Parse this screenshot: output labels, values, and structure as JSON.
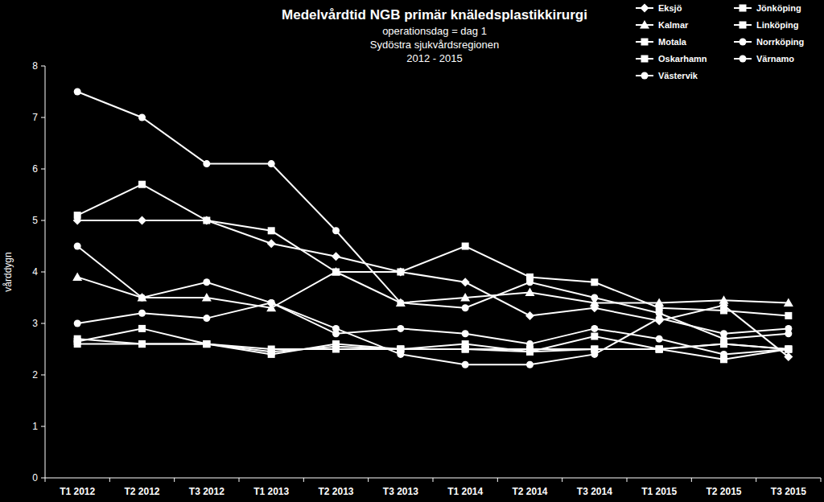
{
  "chart_data": {
    "type": "line",
    "title": "Medelvårdtid NGB primär knäledsplastikkirurgi",
    "subtitle": [
      "operationsdag = dag 1",
      "Sydöstra sjukvårdsregionen",
      "2012 - 2015"
    ],
    "y_label": "vårddygn",
    "categories": [
      "T1 2012",
      "T2 2012",
      "T3 2012",
      "T1 2013",
      "T2 2013",
      "T3 2013",
      "T1 2014",
      "T2 2014",
      "T3 2014",
      "T1 2015",
      "T2 2015",
      "T3 2015"
    ],
    "ylim": [
      0,
      8
    ],
    "yticks": [
      0,
      1,
      2,
      3,
      4,
      5,
      6,
      7,
      8
    ],
    "grid": false,
    "legend": "top-right",
    "series": [
      {
        "name": "Eksjö",
        "color": "#ffffff",
        "marker": "diamond",
        "values": [
          5.0,
          5.0,
          5.0,
          4.55,
          4.3,
          4.0,
          3.8,
          3.15,
          3.3,
          3.05,
          3.35,
          2.35
        ]
      },
      {
        "name": "Jönköping",
        "color": "#ffffff",
        "marker": "square",
        "values": [
          2.6,
          2.6,
          2.6,
          2.45,
          2.55,
          2.5,
          2.5,
          2.5,
          2.5,
          2.5,
          2.6,
          2.5
        ]
      },
      {
        "name": "Kalmar",
        "color": "#ffffff",
        "marker": "triangle",
        "values": [
          3.9,
          3.5,
          3.5,
          3.3,
          4.0,
          3.4,
          3.5,
          3.6,
          3.4,
          3.4,
          3.45,
          3.4
        ]
      },
      {
        "name": "Linköping",
        "color": "#ffffff",
        "marker": "square",
        "values": [
          5.1,
          5.7,
          5.0,
          4.8,
          4.0,
          4.0,
          4.5,
          3.9,
          3.8,
          3.3,
          3.25,
          3.15
        ]
      },
      {
        "name": "Motala",
        "color": "#ffffff",
        "marker": "square",
        "values": [
          2.7,
          2.6,
          2.6,
          2.5,
          2.5,
          2.5,
          2.5,
          2.45,
          2.5,
          2.5,
          2.6,
          2.5
        ]
      },
      {
        "name": "Norrköping",
        "color": "#ffffff",
        "marker": "circle",
        "values": [
          4.5,
          3.5,
          3.8,
          3.4,
          2.9,
          2.4,
          2.2,
          2.2,
          2.4,
          3.1,
          2.8,
          2.9
        ]
      },
      {
        "name": "Oskarhamn",
        "color": "#ffffff",
        "marker": "square",
        "values": [
          2.65,
          2.9,
          2.6,
          2.4,
          2.6,
          2.5,
          2.6,
          2.45,
          2.75,
          2.5,
          2.3,
          2.5
        ]
      },
      {
        "name": "Värnamo",
        "color": "#ffffff",
        "marker": "circle",
        "values": [
          3.0,
          3.2,
          3.1,
          3.4,
          2.8,
          2.9,
          2.8,
          2.6,
          2.9,
          2.7,
          2.4,
          2.5
        ]
      },
      {
        "name": "Västervik",
        "color": "#ffffff",
        "marker": "circle",
        "values": [
          7.5,
          7.0,
          6.1,
          6.1,
          4.8,
          3.4,
          3.3,
          3.8,
          3.5,
          3.2,
          2.7,
          2.8
        ]
      }
    ]
  }
}
